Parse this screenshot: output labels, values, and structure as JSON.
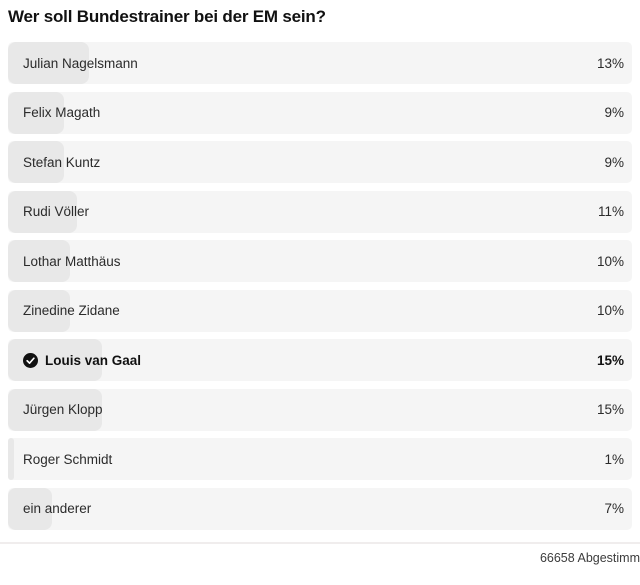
{
  "poll": {
    "title": "Wer soll Bundestrainer bei der EM sein?",
    "options": [
      {
        "label": "Julian Nagelsmann",
        "percent": "13%",
        "value": 13,
        "selected": false
      },
      {
        "label": "Felix Magath",
        "percent": "9%",
        "value": 9,
        "selected": false
      },
      {
        "label": "Stefan Kuntz",
        "percent": "9%",
        "value": 9,
        "selected": false
      },
      {
        "label": "Rudi Völler",
        "percent": "11%",
        "value": 11,
        "selected": false
      },
      {
        "label": "Lothar Matthäus",
        "percent": "10%",
        "value": 10,
        "selected": false
      },
      {
        "label": "Zinedine Zidane",
        "percent": "10%",
        "value": 10,
        "selected": false
      },
      {
        "label": "Louis van Gaal",
        "percent": "15%",
        "value": 15,
        "selected": true
      },
      {
        "label": "Jürgen Klopp",
        "percent": "15%",
        "value": 15,
        "selected": false
      },
      {
        "label": "Roger Schmidt",
        "percent": "1%",
        "value": 1,
        "selected": false
      },
      {
        "label": "ein anderer",
        "percent": "7%",
        "value": 7,
        "selected": false
      }
    ],
    "footer": "66658 Abgestimm",
    "colors": {
      "row_bg": "#f5f5f5",
      "bar_bg": "#e8e8e8",
      "check_bg": "#111111",
      "check_mark": "#ffffff",
      "title_text": "#111111"
    }
  }
}
